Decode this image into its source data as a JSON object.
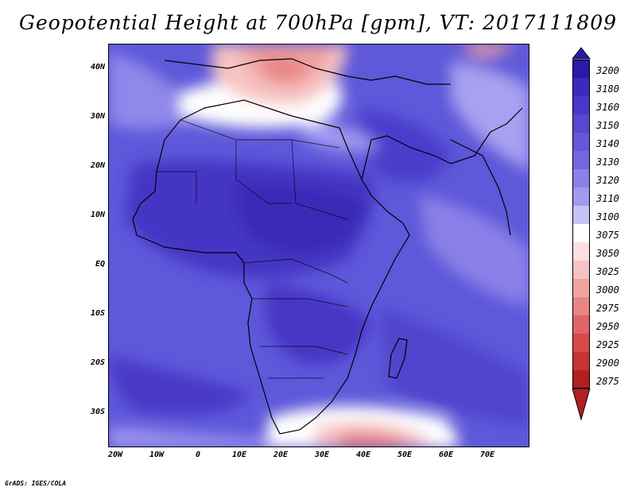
{
  "title": "Geopotential Height at 700hPa [gpm], VT: 2017111809",
  "credit": "GrADS: IGES/COLA",
  "map": {
    "projection": "lat-lon",
    "lon_range": [
      -23,
      80
    ],
    "lat_range": [
      -37,
      45
    ],
    "lat_ticks": [
      "40N",
      "30N",
      "20N",
      "10N",
      "EQ",
      "10S",
      "20S",
      "30S"
    ],
    "lon_ticks": [
      "20W",
      "10W",
      "0",
      "10E",
      "20E",
      "30E",
      "40E",
      "50E",
      "60E",
      "70E"
    ],
    "field": "Geopotential Height at 700hPa",
    "field_units": "gpm",
    "features": {
      "high_band": "3140-3180 gpm across tropical Africa",
      "low_north": "2975-3075 gpm over the Mediterranean",
      "low_south": "2975-3075 gpm south of Africa"
    }
  },
  "colorbar": {
    "levels": [
      "3200",
      "3180",
      "3160",
      "3150",
      "3140",
      "3130",
      "3120",
      "3110",
      "3100",
      "3075",
      "3050",
      "3025",
      "3000",
      "2975",
      "2950",
      "2925",
      "2900",
      "2875"
    ],
    "colors": [
      "#2a1aa8",
      "#3a2bba",
      "#4838c8",
      "#5648d2",
      "#6458da",
      "#7468e0",
      "#8a80e8",
      "#a29af0",
      "#c6c2f6",
      "#ffffff",
      "#fbe0df",
      "#f6c3c2",
      "#efa3a2",
      "#e88584",
      "#e06566",
      "#d84848",
      "#c83232",
      "#b02020"
    ],
    "arrow_top_color": "#2a1aa8",
    "arrow_bottom_color": "#b02020"
  }
}
